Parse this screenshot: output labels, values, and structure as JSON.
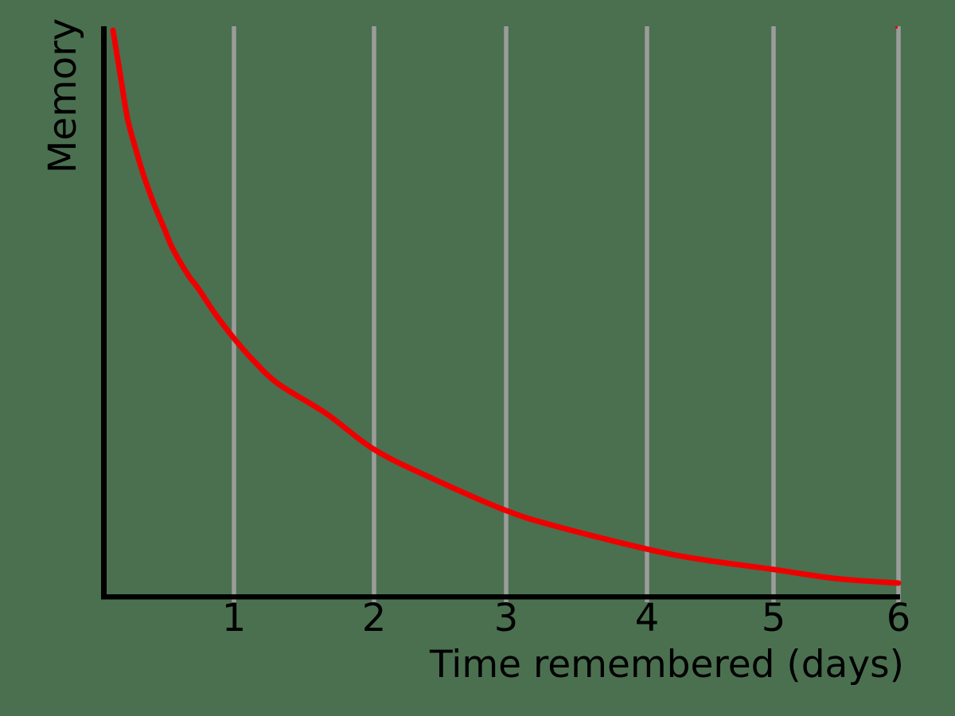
{
  "style": {
    "background_color": "#4a7050",
    "grid_color": "#9c9c9c",
    "axis_color": "#000000",
    "text_color": "#000000",
    "curve_color": "#ee0000"
  },
  "chart_data": {
    "type": "line",
    "title": "",
    "xlabel": "Time remembered (days)",
    "ylabel": "Memory",
    "x_tick_labels": [
      "1",
      "2",
      "3",
      "4",
      "5",
      "6"
    ],
    "x_ticks": [
      1,
      2,
      3,
      4,
      5,
      6
    ],
    "xlim": [
      0,
      6
    ],
    "ylim": [
      0,
      1
    ],
    "grid": "vertical-only",
    "legend": "none",
    "y_axis_ticks": "none",
    "series": [
      {
        "name": "memory-retention",
        "color": "#ee0000",
        "points": [
          {
            "t": 0.09,
            "memory": 1.0
          },
          {
            "t": 0.15,
            "memory": 0.913
          },
          {
            "t": 0.2,
            "memory": 0.843
          },
          {
            "t": 0.26,
            "memory": 0.791
          },
          {
            "t": 0.32,
            "memory": 0.744
          },
          {
            "t": 0.39,
            "memory": 0.698
          },
          {
            "t": 0.47,
            "memory": 0.653
          },
          {
            "t": 0.54,
            "memory": 0.614
          },
          {
            "t": 0.66,
            "memory": 0.566
          },
          {
            "t": 0.72,
            "memory": 0.548
          },
          {
            "t": 0.86,
            "memory": 0.499
          },
          {
            "t": 1.0,
            "memory": 0.456
          },
          {
            "t": 1.15,
            "memory": 0.414
          },
          {
            "t": 1.32,
            "memory": 0.375
          },
          {
            "t": 1.66,
            "memory": 0.323
          },
          {
            "t": 2.0,
            "memory": 0.26
          },
          {
            "t": 2.42,
            "memory": 0.211
          },
          {
            "t": 3.0,
            "memory": 0.152
          },
          {
            "t": 3.36,
            "memory": 0.124
          },
          {
            "t": 4.0,
            "memory": 0.084
          },
          {
            "t": 4.42,
            "memory": 0.066
          },
          {
            "t": 5.0,
            "memory": 0.048
          },
          {
            "t": 5.5,
            "memory": 0.032
          },
          {
            "t": 6.0,
            "memory": 0.024
          }
        ]
      }
    ]
  }
}
